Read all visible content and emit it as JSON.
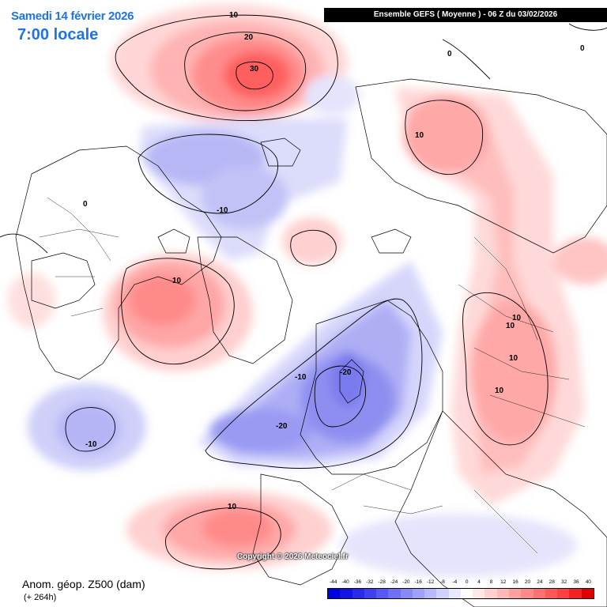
{
  "header": {
    "date": "Samedi 14 février 2026",
    "time": "7:00 locale",
    "model": "Ensemble GEFS  ( Moyenne )  -  06 Z du 03/02/2026"
  },
  "legend": {
    "title": "Anom. géop. Z500 (dam)",
    "lead": "(+ 264h)",
    "scale_labels": [
      "-44",
      "-40",
      "-36",
      "-32",
      "-28",
      "-24",
      "-20",
      "-16",
      "-12",
      "-8",
      "-4",
      "0",
      "4",
      "8",
      "12",
      "16",
      "20",
      "24",
      "28",
      "32",
      "36",
      "40"
    ],
    "scale_colors": [
      "#0000e0",
      "#1414e6",
      "#2a2aec",
      "#4040f0",
      "#5858f2",
      "#7070f4",
      "#8888f6",
      "#a0a0f8",
      "#b8b8fa",
      "#d0d0fc",
      "#e8e8fe",
      "#ffffff",
      "#ffe8e8",
      "#ffd0d0",
      "#ffb8b8",
      "#ffa0a0",
      "#ff8888",
      "#ff7070",
      "#ff5858",
      "#ff4040",
      "#f42222",
      "#e00000"
    ]
  },
  "copyright": "Copyright © 2026 Meteociel.fr",
  "contour_labels": [
    {
      "name": "contour-label-north-10",
      "text": "10"
    },
    {
      "name": "contour-label-north-20",
      "text": "20"
    },
    {
      "name": "contour-label-north-30",
      "text": "30"
    },
    {
      "name": "contour-label-siberia-0",
      "text": "0"
    },
    {
      "name": "contour-label-ne-0",
      "text": "0"
    },
    {
      "name": "contour-label-asia-10",
      "text": "10"
    },
    {
      "name": "contour-label-arctic-minus10",
      "text": "-10"
    },
    {
      "name": "contour-label-canada-0",
      "text": "0"
    },
    {
      "name": "contour-label-hudson-10",
      "text": "10"
    },
    {
      "name": "contour-label-russia-10a",
      "text": "10"
    },
    {
      "name": "contour-label-russia-10b",
      "text": "10"
    },
    {
      "name": "contour-label-russia-10c",
      "text": "10"
    },
    {
      "name": "contour-label-russia-10d",
      "text": "10"
    },
    {
      "name": "contour-label-scandi-minus20",
      "text": "-20"
    },
    {
      "name": "contour-label-scandi-minus10",
      "text": "-10"
    },
    {
      "name": "contour-label-atlantic-minus20",
      "text": "-20"
    },
    {
      "name": "contour-label-pacific-minus10",
      "text": "-10"
    },
    {
      "name": "contour-label-med-10",
      "text": "10"
    }
  ]
}
